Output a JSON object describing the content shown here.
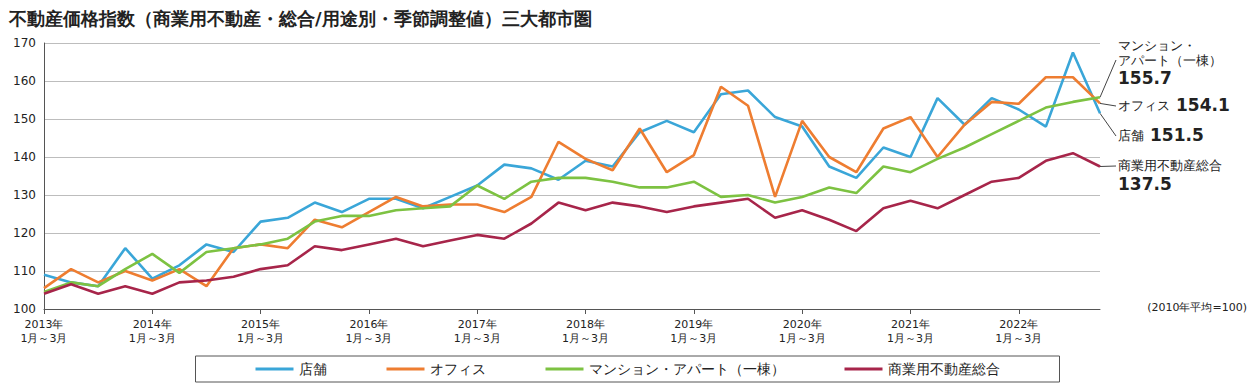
{
  "chart_data": {
    "type": "line",
    "title": "不動産価格指数（商業用不動産・総合/用途別・季節調整値）三大都市圏",
    "note": "(2010年平均=100)",
    "categories": [
      "2013年\n1月～3月",
      null,
      null,
      null,
      "2014年\n1月～3月",
      null,
      null,
      null,
      "2015年\n1月～3月",
      null,
      null,
      null,
      "2016年\n1月～3月",
      null,
      null,
      null,
      "2017年\n1月～3月",
      null,
      null,
      null,
      "2018年\n1月～3月",
      null,
      null,
      null,
      "2019年\n1月～3月",
      null,
      null,
      null,
      "2020年\n1月～3月",
      null,
      null,
      null,
      "2021年\n1月～3月",
      null,
      null,
      null,
      "2022年\n1月～3月",
      null,
      null,
      null
    ],
    "series": [
      {
        "name": "店舗",
        "color": "#3aa6d8",
        "values": [
          109,
          107,
          106,
          116,
          108,
          111.5,
          117,
          115,
          123,
          124,
          128,
          125.5,
          129,
          129,
          126.5,
          129.5,
          132.5,
          138,
          137,
          134,
          139,
          137.5,
          146.5,
          149.5,
          146.5,
          156.5,
          157.5,
          150.5,
          148,
          137.5,
          134.5,
          142.5,
          140,
          155.5,
          148.5,
          155.5,
          152.5,
          148,
          167.5,
          151.5
        ]
      },
      {
        "name": "オフィス",
        "color": "#ee7d31",
        "values": [
          105.5,
          110.5,
          107,
          110,
          107.5,
          110.5,
          106,
          116,
          117,
          116,
          123.5,
          121.5,
          125.5,
          129.5,
          127,
          127.5,
          127.5,
          125.5,
          129.5,
          144,
          139.5,
          136.5,
          147.5,
          136,
          140.5,
          158.5,
          153.5,
          129.5,
          149.5,
          140,
          136,
          147.5,
          150.5,
          140,
          148.5,
          154.5,
          154,
          161,
          161,
          154.1
        ]
      },
      {
        "name": "マンション・アパート（一棟）",
        "color": "#7dc242",
        "values": [
          104.5,
          107,
          106,
          110.5,
          114.5,
          109.5,
          115,
          116,
          117,
          118.5,
          123,
          124.5,
          124.5,
          126,
          126.5,
          127,
          132.5,
          129,
          133.5,
          134.5,
          134.5,
          133.5,
          132,
          132,
          133.5,
          129.5,
          130,
          128,
          129.5,
          132,
          130.5,
          137.5,
          136,
          139.5,
          142.5,
          146,
          149.5,
          153,
          154.5,
          155.7
        ]
      },
      {
        "name": "商業用不動産総合",
        "color": "#a7254a",
        "values": [
          104,
          106.5,
          104,
          106,
          104,
          107,
          107.5,
          108.5,
          110.5,
          111.5,
          116.5,
          115.5,
          117,
          118.5,
          116.5,
          118,
          119.5,
          118.5,
          122.5,
          128,
          126,
          128,
          127,
          125.5,
          127,
          128,
          129,
          124,
          126,
          123.5,
          120.5,
          126.5,
          128.5,
          126.5,
          130,
          133.5,
          134.5,
          139,
          141,
          137.5
        ]
      }
    ],
    "annotations": [
      {
        "series": "マンション・アパート（一棟）",
        "label": "マンション・\nアパート（一棟）",
        "value_label": "155.7"
      },
      {
        "series": "オフィス",
        "label": "オフィス",
        "value_label": "154.1"
      },
      {
        "series": "店舗",
        "label": "店舗",
        "value_label": "151.5"
      },
      {
        "series": "商業用不動産総合",
        "label": "商業用不動産総合",
        "value_label": "137.5"
      }
    ],
    "ylim": [
      100,
      170
    ],
    "yticks": [
      100,
      110,
      120,
      130,
      140,
      150,
      160,
      170
    ],
    "grid": true,
    "legend": "bottom"
  }
}
